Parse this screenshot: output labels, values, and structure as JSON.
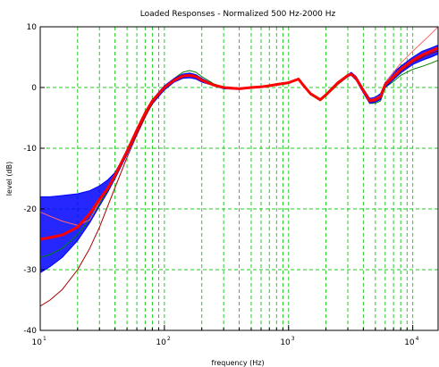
{
  "chart_data": {
    "type": "line",
    "title": "Loaded Responses - Normalized 500 Hz-2000 Hz",
    "xlabel": "frequency (Hz)",
    "ylabel": "level (dB)",
    "xscale": "log",
    "xlim": [
      10,
      16000
    ],
    "ylim": [
      -40,
      10
    ],
    "grid": true,
    "legend": "none",
    "x_major_ticks": [
      {
        "value": 10,
        "base": "10",
        "exp": "1"
      },
      {
        "value": 100,
        "base": "10",
        "exp": "2"
      },
      {
        "value": 1000,
        "base": "10",
        "exp": "3"
      },
      {
        "value": 10000,
        "base": "10",
        "exp": "4"
      }
    ],
    "y_ticks": [
      {
        "value": 10,
        "label": "10"
      },
      {
        "value": 0,
        "label": "0"
      },
      {
        "value": -10,
        "label": "-10"
      },
      {
        "value": -20,
        "label": "-20"
      },
      {
        "value": -30,
        "label": "-30"
      },
      {
        "value": -40,
        "label": "-40"
      }
    ],
    "x": [
      10,
      12,
      15,
      20,
      25,
      30,
      35,
      40,
      50,
      60,
      70,
      80,
      100,
      120,
      140,
      160,
      180,
      200,
      250,
      300,
      400,
      500,
      600,
      700,
      800,
      1000,
      1200,
      1300,
      1500,
      1800,
      2000,
      2500,
      3000,
      3200,
      3500,
      4000,
      4500,
      5000,
      5500,
      6000,
      7000,
      8000,
      10000,
      12000,
      14000,
      16000
    ],
    "series": [
      {
        "color": "#ff0000",
        "values": [
          -25,
          -24.7,
          -24.3,
          -23,
          -20.8,
          -18.4,
          -16.6,
          -14.5,
          -10.5,
          -7,
          -4.2,
          -2.2,
          0,
          1.2,
          1.9,
          2,
          1.8,
          1.2,
          0.4,
          0,
          -0.2,
          0,
          0.1,
          0.3,
          0.5,
          0.8,
          1.4,
          0.5,
          -1,
          -2,
          -1.2,
          0.8,
          2,
          2.2,
          1.5,
          -0.5,
          -2.2,
          -2,
          -1.5,
          0.5,
          1.8,
          3,
          4.5,
          5.4,
          6,
          6.5
        ]
      },
      {
        "color": "#0000ff",
        "values": [
          -18,
          -18,
          -17.8,
          -17.5,
          -17,
          -16.2,
          -15.2,
          -14,
          -10.5,
          -7,
          -4.2,
          -2,
          0.3,
          1.5,
          2.2,
          2.4,
          2.1,
          1.5,
          0.5,
          0.1,
          -0.2,
          0,
          0.1,
          0.3,
          0.5,
          0.8,
          1.3,
          0.5,
          -1,
          -2,
          -1.3,
          0.8,
          2.1,
          2.5,
          1.8,
          -0.2,
          -1.8,
          -1.6,
          -1,
          0.8,
          2.5,
          3.5,
          5,
          6,
          6.5,
          7
        ]
      },
      {
        "color": "#0000ff",
        "values": [
          -30.5,
          -29.5,
          -28,
          -25.2,
          -22.3,
          -19.5,
          -17.2,
          -15,
          -11,
          -7.5,
          -4.8,
          -2.7,
          -0.4,
          0.9,
          1.5,
          1.6,
          1.4,
          0.9,
          0.3,
          -0.2,
          -0.3,
          -0.1,
          0.1,
          0.3,
          0.5,
          0.8,
          1.3,
          0.4,
          -1.1,
          -2.1,
          -1.3,
          0.6,
          1.8,
          2,
          1.2,
          -0.9,
          -2.6,
          -2.4,
          -2,
          0,
          1.3,
          2.4,
          3.8,
          4.5,
          5,
          5.5
        ]
      },
      {
        "color": "#008000",
        "values": [
          -28,
          -27.5,
          -26.5,
          -24.2,
          -21.7,
          -19.2,
          -17,
          -15,
          -11,
          -7.4,
          -4.6,
          -2.5,
          0,
          1.5,
          2.5,
          2.8,
          2.5,
          1.8,
          0.6,
          0.1,
          -0.3,
          0,
          0.1,
          0.3,
          0.5,
          0.8,
          1.4,
          0.4,
          -1.2,
          -2.2,
          -1.4,
          0.5,
          1.8,
          2.3,
          1.4,
          -0.8,
          -2.6,
          -2.6,
          -2.2,
          0,
          1,
          2,
          3,
          3.5,
          4,
          4.5
        ]
      },
      {
        "color": "#ff6666",
        "values": [
          -20.5,
          -21.2,
          -22,
          -22.7,
          -21.8,
          -18.8,
          -16.6,
          -14.5,
          -10.5,
          -7,
          -4.2,
          -2.2,
          0,
          1.2,
          1.9,
          2,
          1.8,
          1.2,
          0.4,
          0,
          -0.2,
          0,
          0.1,
          0.3,
          0.5,
          0.8,
          1.4,
          0.5,
          -1,
          -2,
          -1.2,
          0.8,
          2,
          2.3,
          1.6,
          -0.3,
          -2,
          -1.8,
          -1.3,
          0.7,
          2.5,
          4,
          6,
          7.5,
          8.8,
          10
        ]
      },
      {
        "color": "#aa0000",
        "values": [
          -36,
          -35,
          -33.3,
          -30,
          -26.5,
          -23,
          -19.5,
          -16.5,
          -11.5,
          -7.8,
          -4.9,
          -2.6,
          0,
          1.2,
          1.8,
          1.9,
          1.7,
          1.1,
          0.3,
          -0.1,
          -0.2,
          0,
          0.1,
          0.3,
          0.5,
          0.8,
          1.3,
          0.4,
          -1.1,
          -2.1,
          -1.3,
          0.7,
          1.9,
          2.1,
          1.4,
          -0.6,
          -2.4,
          -2.2,
          -1.7,
          0.3,
          1.5,
          2.7,
          4.2,
          5,
          5.6,
          6
        ]
      }
    ]
  }
}
